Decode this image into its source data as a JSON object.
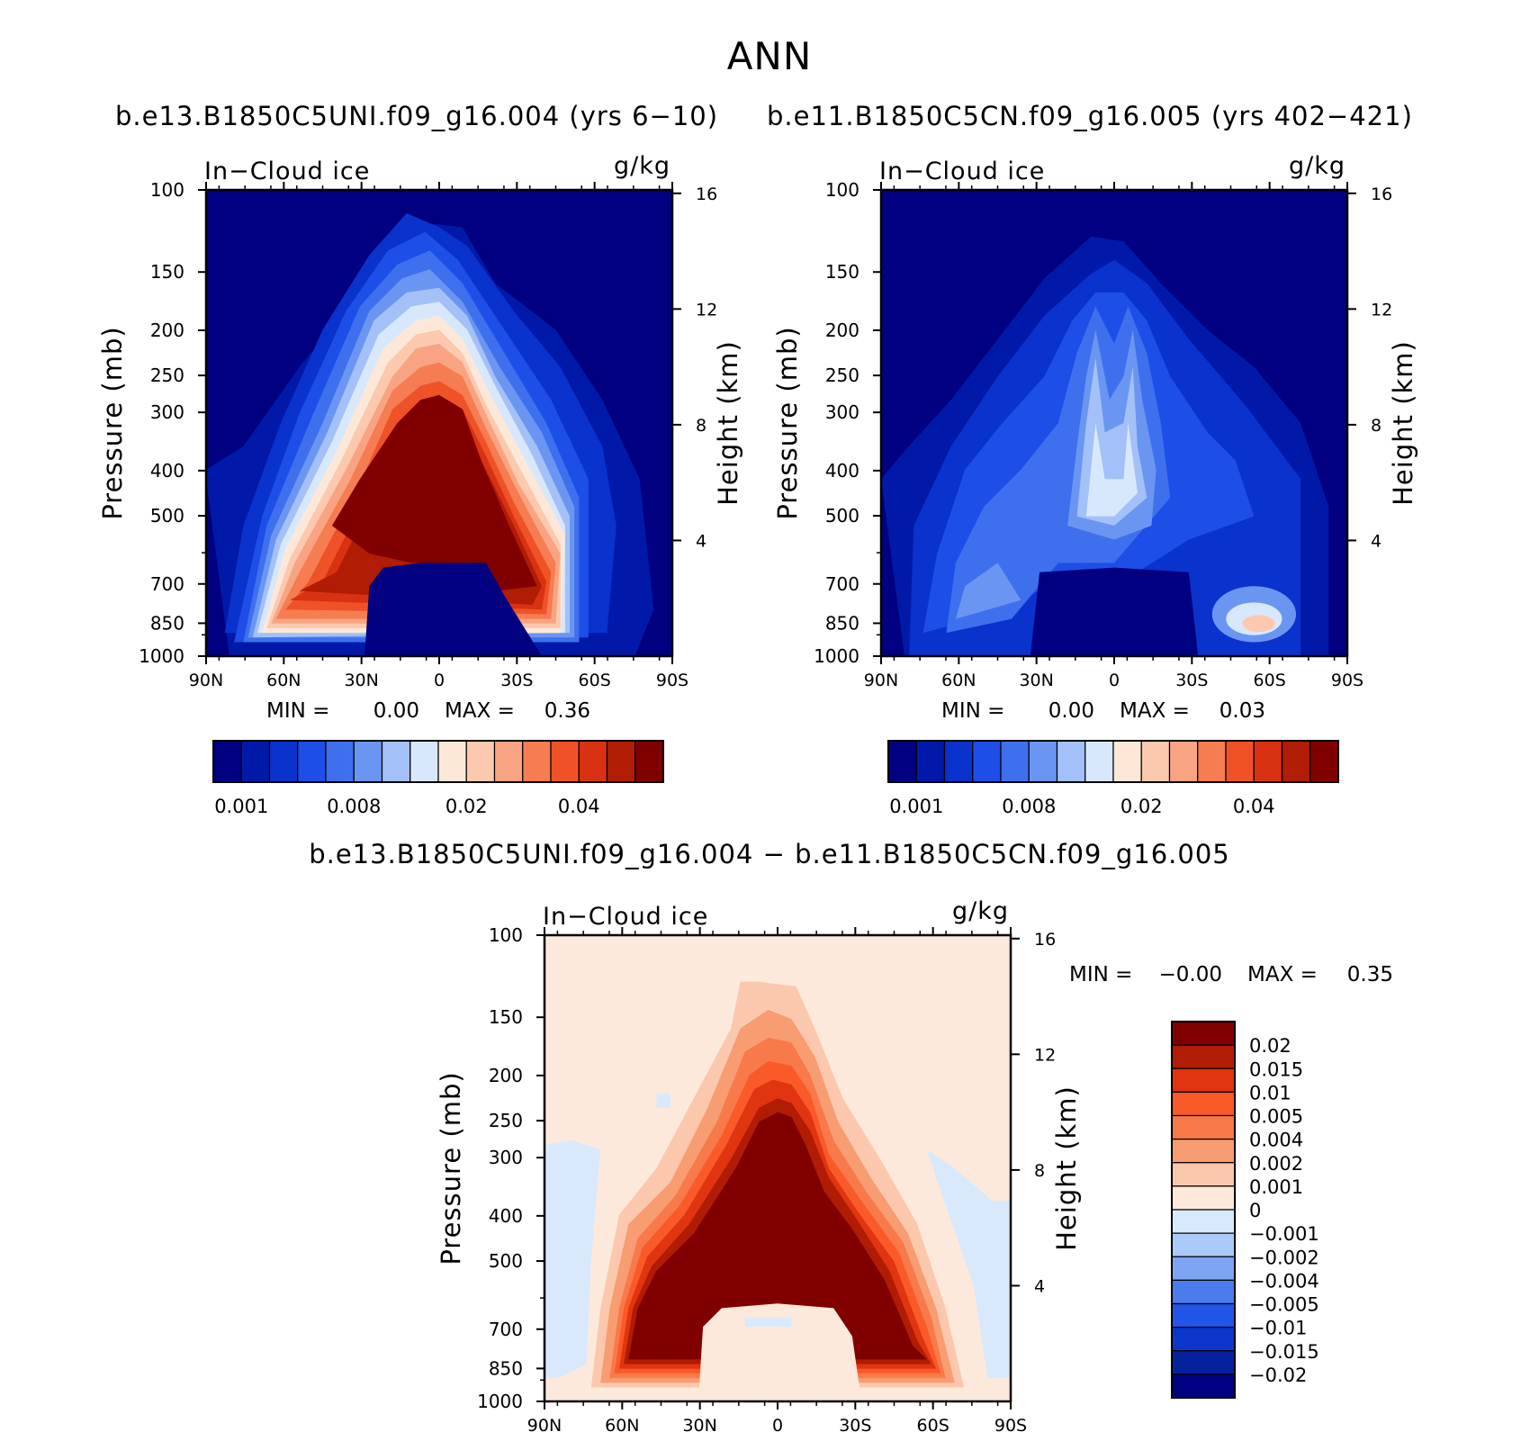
{
  "figure": {
    "title": "ANN",
    "left_subtitle": "b.e13.B1850C5UNI.f09_g16.004 (yrs 6−10)",
    "right_subtitle": "b.e11.B1850C5CN.f09_g16.005 (yrs 402−421)",
    "diff_subtitle": "b.e13.B1850C5UNI.f09_g16.004 − b.e11.B1850C5CN.f09_g16.005"
  },
  "colors": {
    "abs_palette": [
      "#000080",
      "#0019a8",
      "#0a32cc",
      "#1e4ee8",
      "#3e70ee",
      "#6a96f2",
      "#a4c0f8",
      "#d8e8fc",
      "#fde8d8",
      "#fcc8ae",
      "#f8a482",
      "#f67c52",
      "#f05228",
      "#d83212",
      "#b01c04",
      "#800000"
    ],
    "diff_palette": [
      "#800000",
      "#b01c04",
      "#e03510",
      "#fa5a28",
      "#f8794a",
      "#f89c72",
      "#fbc8ad",
      "#fde9db",
      "#d9e9fc",
      "#aacafa",
      "#7ea4f4",
      "#4a7cee",
      "#2055e8",
      "#0c36cc",
      "#04229e",
      "#000080"
    ]
  },
  "chart_data": [
    {
      "type": "contour",
      "panel": "left",
      "variable_label": "In−Cloud ice",
      "units": "g/kg",
      "xlabel": "",
      "ylabel": "Pressure (mb)",
      "y2label": "Height (km)",
      "xticks": [
        "90N",
        "60N",
        "30N",
        "0",
        "30S",
        "60S",
        "90S"
      ],
      "yticks": [
        "100",
        "150",
        "200",
        "250",
        "300",
        "400",
        "500",
        "700",
        "850",
        "1000"
      ],
      "y2ticks": [
        "16",
        "12",
        "8",
        "4"
      ],
      "min_label": "MIN =",
      "min_value": "0.00",
      "max_label": "MAX =",
      "max_value": "0.36",
      "colorbar_labels": [
        "0.001",
        "0.008",
        "0.02",
        "0.04"
      ],
      "levels": 16
    },
    {
      "type": "contour",
      "panel": "right",
      "variable_label": "In−Cloud ice",
      "units": "g/kg",
      "xlabel": "",
      "ylabel": "Pressure (mb)",
      "y2label": "Height (km)",
      "xticks": [
        "90N",
        "60N",
        "30N",
        "0",
        "30S",
        "60S",
        "90S"
      ],
      "yticks": [
        "100",
        "150",
        "200",
        "250",
        "300",
        "400",
        "500",
        "700",
        "850",
        "1000"
      ],
      "y2ticks": [
        "16",
        "12",
        "8",
        "4"
      ],
      "min_label": "MIN =",
      "min_value": "0.00",
      "max_label": "MAX =",
      "max_value": "0.03",
      "colorbar_labels": [
        "0.001",
        "0.008",
        "0.02",
        "0.04"
      ],
      "levels": 16
    },
    {
      "type": "contour",
      "panel": "difference",
      "variable_label": "In−Cloud ice",
      "units": "g/kg",
      "xlabel": "",
      "ylabel": "Pressure (mb)",
      "y2label": "Height (km)",
      "xticks": [
        "90N",
        "60N",
        "30N",
        "0",
        "30S",
        "60S",
        "90S"
      ],
      "yticks": [
        "100",
        "150",
        "200",
        "250",
        "300",
        "400",
        "500",
        "700",
        "850",
        "1000"
      ],
      "y2ticks": [
        "16",
        "12",
        "8",
        "4"
      ],
      "min_label": "MIN =",
      "min_value": "−0.00",
      "max_label": "MAX =",
      "max_value": "0.35",
      "colorbar_labels": [
        "0.02",
        "0.015",
        "0.01",
        "0.005",
        "0.004",
        "0.002",
        "0.001",
        "0",
        "−0.001",
        "−0.002",
        "−0.004",
        "−0.005",
        "−0.01",
        "−0.015",
        "−0.02"
      ]
    }
  ]
}
